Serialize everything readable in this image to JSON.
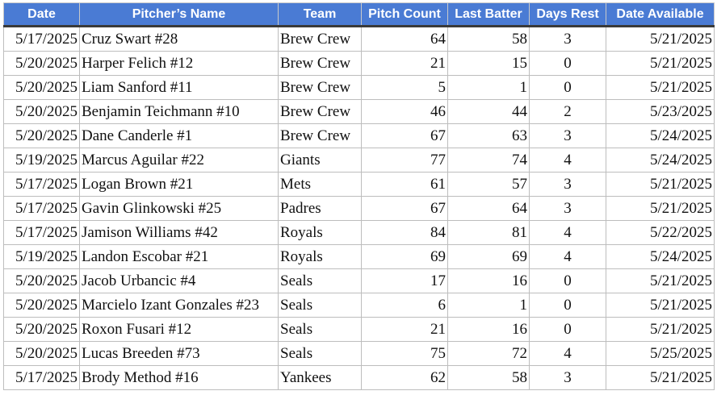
{
  "columns": [
    "Date",
    "Pitcher’s Name",
    "Team",
    "Pitch Count",
    "Last Batter",
    "Days Rest",
    "Date Available"
  ],
  "rows": [
    [
      "5/17/2025",
      "Cruz Swart #28",
      "Brew Crew",
      "64",
      "58",
      "3",
      "5/21/2025"
    ],
    [
      "5/20/2025",
      "Harper Felich #12",
      "Brew Crew",
      "21",
      "15",
      "0",
      "5/21/2025"
    ],
    [
      "5/20/2025",
      "Liam Sanford #11",
      "Brew Crew",
      "5",
      "1",
      "0",
      "5/21/2025"
    ],
    [
      "5/20/2025",
      "Benjamin Teichmann #10",
      "Brew Crew",
      "46",
      "44",
      "2",
      "5/23/2025"
    ],
    [
      "5/20/2025",
      "Dane Canderle #1",
      "Brew Crew",
      "67",
      "63",
      "3",
      "5/24/2025"
    ],
    [
      "5/19/2025",
      "Marcus Aguilar #22",
      "Giants",
      "77",
      "74",
      "4",
      "5/24/2025"
    ],
    [
      "5/17/2025",
      "Logan Brown #21",
      "Mets",
      "61",
      "57",
      "3",
      "5/21/2025"
    ],
    [
      "5/17/2025",
      "Gavin Glinkowski #25",
      "Padres",
      "67",
      "64",
      "3",
      "5/21/2025"
    ],
    [
      "5/17/2025",
      "Jamison Williams #42",
      "Royals",
      "84",
      "81",
      "4",
      "5/22/2025"
    ],
    [
      "5/19/2025",
      "Landon Escobar #21",
      "Royals",
      "69",
      "69",
      "4",
      "5/24/2025"
    ],
    [
      "5/20/2025",
      "Jacob Urbancic #4",
      "Seals",
      "17",
      "16",
      "0",
      "5/21/2025"
    ],
    [
      "5/20/2025",
      "Marcielo Izant Gonzales #23",
      "Seals",
      "6",
      "1",
      "0",
      "5/21/2025"
    ],
    [
      "5/20/2025",
      "Roxon Fusari #12",
      "Seals",
      "21",
      "16",
      "0",
      "5/21/2025"
    ],
    [
      "5/20/2025",
      "Lucas Breeden #73",
      "Seals",
      "75",
      "72",
      "4",
      "5/25/2025"
    ],
    [
      "5/17/2025",
      "Brody Method #16",
      "Yankees",
      "62",
      "58",
      "3",
      "5/21/2025"
    ]
  ],
  "colors": {
    "header_background": "#4a7bd4",
    "header_text": "#ffffff",
    "grid": "#bdbdbd"
  }
}
